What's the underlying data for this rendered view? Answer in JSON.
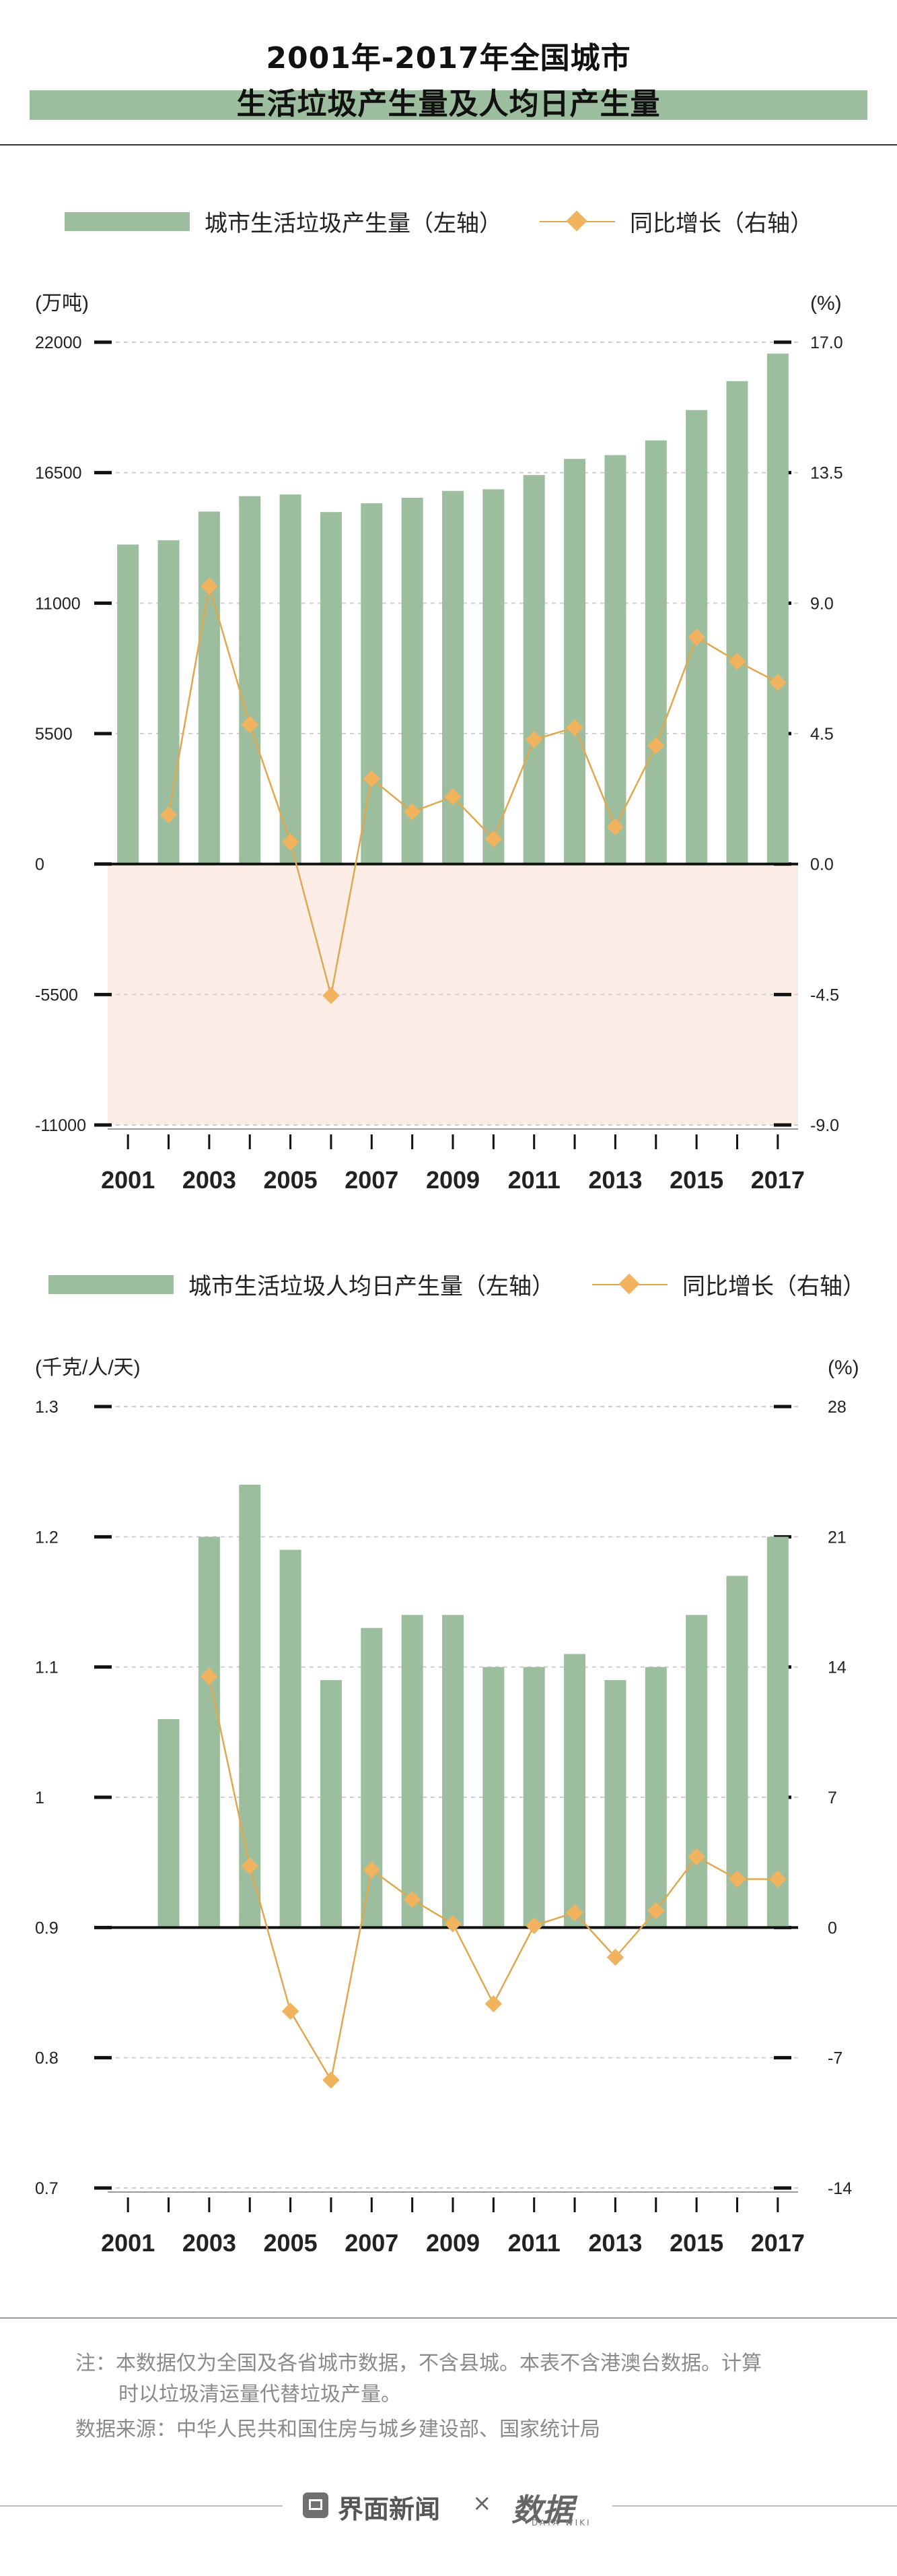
{
  "title": {
    "line1": "2001年-2017年全国城市",
    "line2": "生活垃圾产生量及人均日产生量"
  },
  "colors": {
    "bar": "#9cbd9e",
    "line": "#e0a84e",
    "marker": "#f2b35e",
    "negative_zone": "#fbece6"
  },
  "chart_data": [
    {
      "type": "bar",
      "legend": {
        "bar_label": "城市生活垃圾产生量（左轴）",
        "line_label": "同比增长（右轴）"
      },
      "ylabel_left": "(万吨)",
      "ylabel_right": "(%)",
      "left_ticks": [
        "22000",
        "16500",
        "11000",
        "5500",
        "0",
        "-5500",
        "-11000"
      ],
      "right_ticks": [
        "17.0",
        "13.5",
        "9.0",
        "4.5",
        "0.0",
        "-4.5",
        "-9.0"
      ],
      "ylim_left": [
        -11000,
        22000
      ],
      "ylim_right": [
        -9,
        17
      ],
      "x_ticks": [
        "2001",
        "2003",
        "2005",
        "2007",
        "2009",
        "2011",
        "2013",
        "2015",
        "2017"
      ],
      "categories": [
        "2001",
        "2002",
        "2003",
        "2004",
        "2005",
        "2006",
        "2007",
        "2008",
        "2009",
        "2010",
        "2011",
        "2012",
        "2013",
        "2014",
        "2015",
        "2016",
        "2017"
      ],
      "series": [
        {
          "name": "城市生活垃圾产生量",
          "kind": "bar",
          "values": [
            13470,
            13650,
            14860,
            15510,
            15580,
            14840,
            15210,
            15440,
            15730,
            15800,
            16400,
            17080,
            17240,
            17860,
            19140,
            20360,
            21520
          ]
        },
        {
          "name": "同比增长",
          "kind": "line",
          "values": [
            null,
            1.3,
            8.9,
            4.3,
            0.4,
            -4.7,
            2.5,
            1.4,
            1.9,
            0.5,
            3.8,
            4.2,
            0.9,
            3.6,
            7.2,
            6.4,
            5.7
          ]
        }
      ]
    },
    {
      "type": "bar",
      "legend": {
        "bar_label": "城市生活垃圾人均日产生量（左轴）",
        "line_label": "同比增长（右轴）"
      },
      "ylabel_left": "(千克/人/天)",
      "ylabel_right": "(%)",
      "left_ticks": [
        "1.3",
        "1.2",
        "1.1",
        "1",
        "0.9",
        "0.8",
        "0.7"
      ],
      "right_ticks": [
        "28",
        "21",
        "14",
        "7",
        "0",
        "-7",
        "-14"
      ],
      "ylim_left": [
        0.7,
        1.3
      ],
      "ylim_right": [
        -14,
        28
      ],
      "x_ticks": [
        "2001",
        "2003",
        "2005",
        "2007",
        "2009",
        "2011",
        "2013",
        "2015",
        "2017"
      ],
      "categories": [
        "2001",
        "2002",
        "2003",
        "2004",
        "2005",
        "2006",
        "2007",
        "2008",
        "2009",
        "2010",
        "2011",
        "2012",
        "2013",
        "2014",
        "2015",
        "2016",
        "2017"
      ],
      "series": [
        {
          "name": "城市生活垃圾人均日产生量",
          "kind": "bar",
          "values": [
            null,
            1.06,
            1.2,
            1.24,
            1.19,
            1.09,
            1.13,
            1.14,
            1.14,
            1.1,
            1.1,
            1.11,
            1.09,
            1.1,
            1.14,
            1.17,
            1.2
          ]
        },
        {
          "name": "同比增长",
          "kind": "line",
          "values": [
            null,
            null,
            13.5,
            3.3,
            -4.5,
            -8.2,
            3.1,
            1.5,
            0.2,
            -4.1,
            0.1,
            0.8,
            -1.6,
            0.9,
            3.8,
            2.6,
            2.6
          ]
        }
      ]
    }
  ],
  "note": {
    "line1": "注：本数据仅为全国及各省城市数据，不含县城。本表不含港澳台数据。计算",
    "line2": "时以垃圾清运量代替垃圾产量。",
    "source": "数据来源：中华人民共和国住房与城乡建设部、国家统计局"
  },
  "footer": {
    "brand": "界面新闻",
    "times": "×",
    "logo": "数据",
    "logo_sub": "DATA WIKI"
  }
}
